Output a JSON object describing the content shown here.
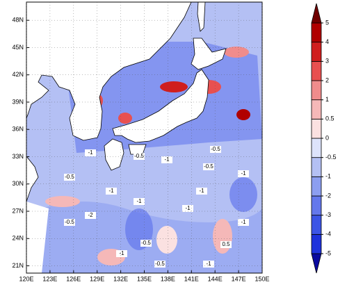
{
  "chart_data": {
    "type": "contour-map",
    "xlim": [
      120,
      150
    ],
    "ylim": [
      20.2,
      50
    ],
    "xticks": [
      {
        "value": 120,
        "label": "120E"
      },
      {
        "value": 123,
        "label": "123E"
      },
      {
        "value": 126,
        "label": "126E"
      },
      {
        "value": 129,
        "label": "129E"
      },
      {
        "value": 132,
        "label": "132E"
      },
      {
        "value": 135,
        "label": "135E"
      },
      {
        "value": 138,
        "label": "138E"
      },
      {
        "value": 141,
        "label": "141E"
      },
      {
        "value": 144,
        "label": "144E"
      },
      {
        "value": 147,
        "label": "147E"
      },
      {
        "value": 150,
        "label": "150E"
      }
    ],
    "yticks": [
      {
        "value": 21,
        "label": "21N"
      },
      {
        "value": 24,
        "label": "24N"
      },
      {
        "value": 27,
        "label": "27N"
      },
      {
        "value": 30,
        "label": "30N"
      },
      {
        "value": 33,
        "label": "33N"
      },
      {
        "value": 36,
        "label": "36N"
      },
      {
        "value": 39,
        "label": "39N"
      },
      {
        "value": 42,
        "label": "42N"
      },
      {
        "value": 45,
        "label": "45N"
      },
      {
        "value": 48,
        "label": "48N"
      }
    ],
    "levels": [
      -5,
      -4,
      -3,
      -2,
      -1,
      -0.5,
      0,
      0.5,
      1,
      2,
      3,
      4,
      5
    ],
    "colors": [
      "#0a0aa0",
      "#1e32dc",
      "#3c55e6",
      "#6478ec",
      "#8c9ef0",
      "#b4c0f4",
      "#dde3fb",
      "#fbe1e1",
      "#f5b8b8",
      "#f08c8c",
      "#e85050",
      "#d01e1e",
      "#b00000",
      "#700000"
    ],
    "contour_labels": [
      "-1",
      "-0.5",
      "-1",
      "-0.5",
      "-1",
      "-0.5",
      "-1",
      "-1",
      "-0.5",
      "-1",
      "-2",
      "-1",
      "-0.5",
      "-1",
      "-0.5",
      "-1",
      "0.5",
      "-0.5",
      "-1"
    ]
  }
}
